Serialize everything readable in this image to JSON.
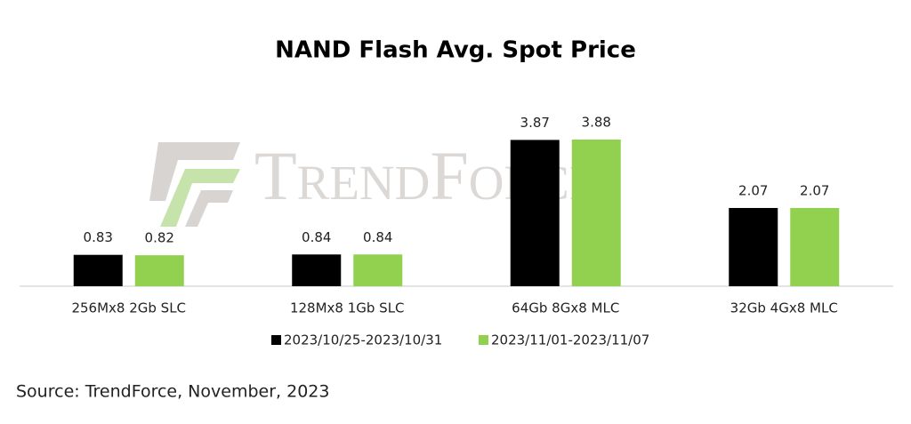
{
  "chart_data": {
    "type": "bar",
    "title": "NAND Flash Avg. Spot Price",
    "categories": [
      "256Mx8 2Gb SLC",
      "128Mx8 1Gb SLC",
      "64Gb 8Gx8 MLC",
      "32Gb 4Gx8 MLC"
    ],
    "series": [
      {
        "name": "2023/10/25-2023/10/31",
        "color": "#000000",
        "values": [
          0.83,
          0.84,
          3.87,
          2.07
        ]
      },
      {
        "name": "2023/11/01-2023/11/07",
        "color": "#92d050",
        "values": [
          0.82,
          0.84,
          3.88,
          2.07
        ]
      }
    ],
    "legend": "bottom",
    "source": "Source: TrendForce, November, 2023",
    "watermark": "TrendForce"
  }
}
